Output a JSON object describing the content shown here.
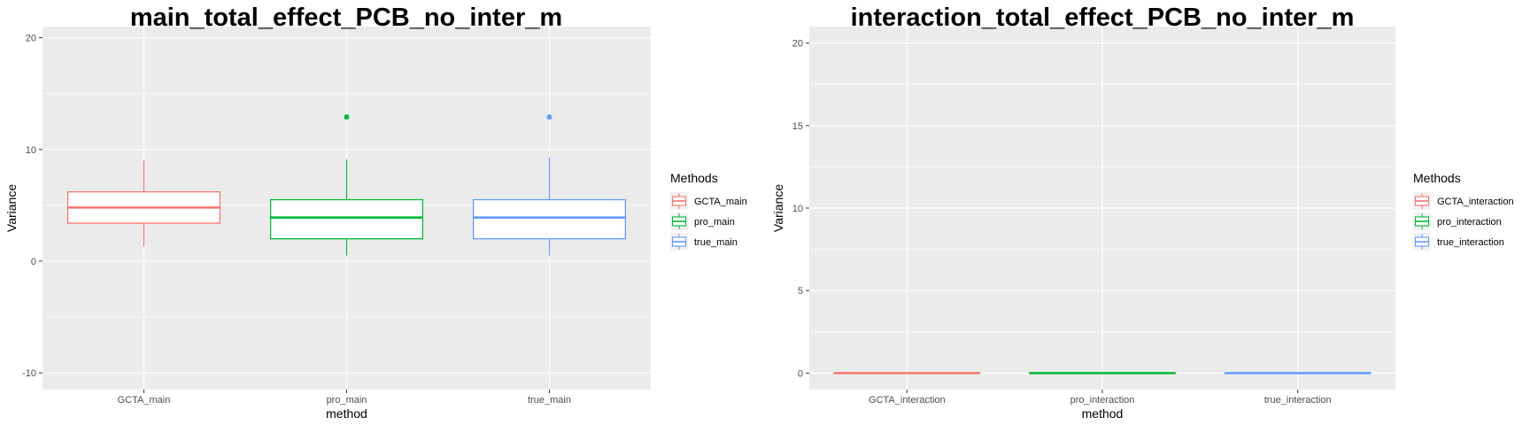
{
  "chart_data": [
    {
      "type": "boxplot",
      "title": "main_total_effect_PCB_no_inter_m",
      "xlabel": "method",
      "ylabel": "Variance",
      "ylim": [
        -11.5,
        21
      ],
      "yticks": [
        -10,
        0,
        10,
        20
      ],
      "categories": [
        "GCTA_main",
        "pro_main",
        "true_main"
      ],
      "legend": {
        "title": "Methods",
        "entries": [
          "GCTA_main",
          "pro_main",
          "true_main"
        ],
        "position": "right"
      },
      "series": [
        {
          "name": "GCTA_main",
          "color": "#F8766D",
          "min": 1.3,
          "q1": 3.4,
          "median": 4.8,
          "q3": 6.2,
          "max": 9.0,
          "outliers": []
        },
        {
          "name": "pro_main",
          "color": "#00BA38",
          "min": 0.5,
          "q1": 2.0,
          "median": 3.9,
          "q3": 5.5,
          "max": 9.1,
          "outliers": [
            12.9
          ]
        },
        {
          "name": "true_main",
          "color": "#619CFF",
          "min": 0.5,
          "q1": 2.0,
          "median": 3.9,
          "q3": 5.5,
          "max": 9.3,
          "outliers": [
            12.9
          ]
        }
      ]
    },
    {
      "type": "boxplot",
      "title": "interaction_total_effect_PCB_no_inter_m",
      "xlabel": "method",
      "ylabel": "Variance",
      "ylim": [
        -1,
        21
      ],
      "yticks": [
        0,
        5,
        10,
        15,
        20
      ],
      "categories": [
        "GCTA_interaction",
        "pro_interaction",
        "true_interaction"
      ],
      "legend": {
        "title": "Methods",
        "entries": [
          "GCTA_interaction",
          "pro_interaction",
          "true_interaction"
        ],
        "position": "right"
      },
      "series": [
        {
          "name": "GCTA_interaction",
          "color": "#F8766D",
          "min": 0,
          "q1": 0,
          "median": 0,
          "q3": 0,
          "max": 0,
          "outliers": []
        },
        {
          "name": "pro_interaction",
          "color": "#00BA38",
          "min": 0,
          "q1": 0,
          "median": 0,
          "q3": 0,
          "max": 0,
          "outliers": []
        },
        {
          "name": "true_interaction",
          "color": "#619CFF",
          "min": 0,
          "q1": 0,
          "median": 0,
          "q3": 0,
          "max": 0,
          "outliers": []
        }
      ]
    }
  ]
}
